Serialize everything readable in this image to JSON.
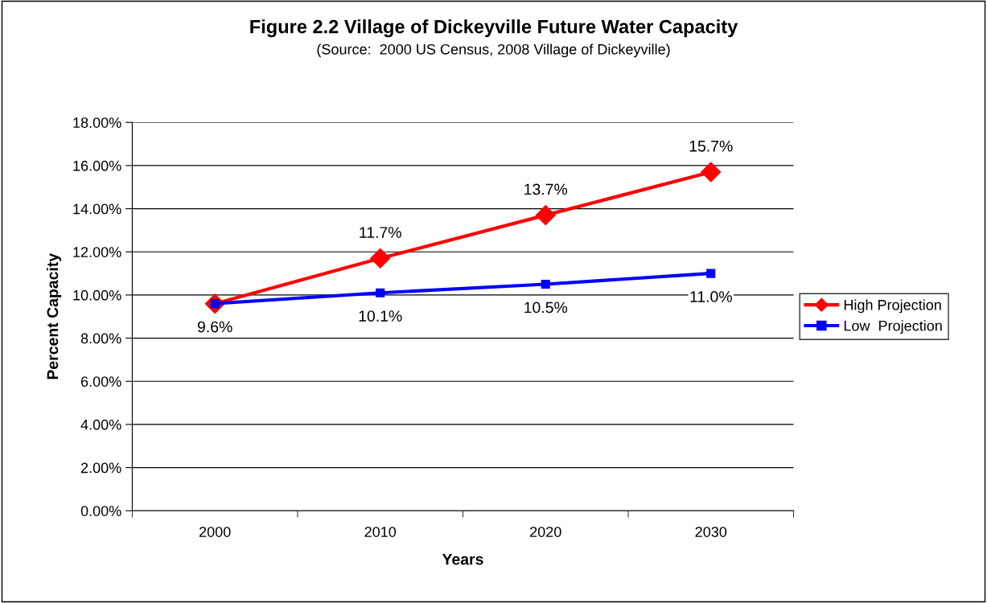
{
  "chart_data": {
    "type": "line",
    "title": "Figure 2.2 Village of Dickeyville Future Water Capacity",
    "subtitle": "(Source:  2000 US Census, 2008 Village of Dickeyville)",
    "xlabel": "Years",
    "ylabel": "Percent Capacity",
    "categories": [
      "2000",
      "2010",
      "2020",
      "2030"
    ],
    "series": [
      {
        "name": "High Projection",
        "color": "#ff0000",
        "marker": "diamond",
        "values": [
          9.6,
          11.7,
          13.7,
          15.7
        ],
        "value_labels": [
          null,
          "11.7%",
          "13.7%",
          "15.7%"
        ]
      },
      {
        "name": "Low  Projection",
        "color": "#0000ff",
        "marker": "square",
        "values": [
          9.6,
          10.1,
          10.5,
          11.0
        ],
        "value_labels": [
          "9.6%",
          "10.1%",
          "10.5%",
          "11.0%"
        ]
      }
    ],
    "ylim": [
      0,
      18
    ],
    "yticks": [
      {
        "value": 0,
        "label": "0.00%"
      },
      {
        "value": 2,
        "label": "2.00%"
      },
      {
        "value": 4,
        "label": "4.00%"
      },
      {
        "value": 6,
        "label": "6.00%"
      },
      {
        "value": 8,
        "label": "8.00%"
      },
      {
        "value": 10,
        "label": "10.00%"
      },
      {
        "value": 12,
        "label": "12.00%"
      },
      {
        "value": 14,
        "label": "14.00%"
      },
      {
        "value": 16,
        "label": "16.00%"
      },
      {
        "value": 18,
        "label": "18.00%"
      }
    ],
    "grid": "y",
    "legend": "right",
    "line_style": "solid"
  }
}
